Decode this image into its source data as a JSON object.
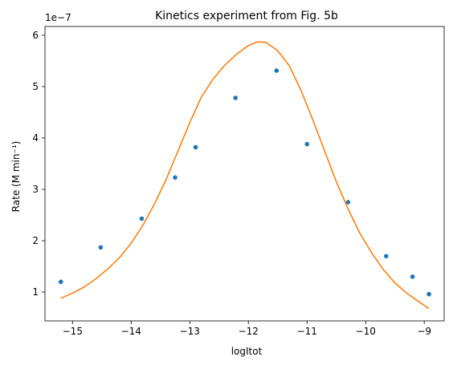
{
  "chart_data": {
    "type": "scatter",
    "title": "Kinetics experiment from Fig. 5b",
    "xlabel": "logItot",
    "ylabel": "Rate (M min⁻¹)",
    "y_offset_text": "1e−7",
    "y_multiplier": 1e-07,
    "xlim": [
      -15.47,
      -8.66
    ],
    "ylim": [
      0.44,
      6.17
    ],
    "x_ticks": [
      -15,
      -14,
      -13,
      -12,
      -11,
      -10,
      -9
    ],
    "x_tick_labels": [
      "−15",
      "−14",
      "−13",
      "−12",
      "−11",
      "−10",
      "−9"
    ],
    "y_ticks": [
      1,
      2,
      3,
      4,
      5,
      6
    ],
    "y_tick_labels": [
      "1",
      "2",
      "3",
      "4",
      "5",
      "6"
    ],
    "grid": false,
    "series": [
      {
        "kind": "scatter",
        "color": "#1f77b4",
        "points": [
          {
            "x": -15.2,
            "y": 1.2
          },
          {
            "x": -14.52,
            "y": 1.87
          },
          {
            "x": -13.82,
            "y": 2.43
          },
          {
            "x": -13.25,
            "y": 3.23
          },
          {
            "x": -12.9,
            "y": 3.82
          },
          {
            "x": -12.22,
            "y": 4.78
          },
          {
            "x": -11.52,
            "y": 5.31
          },
          {
            "x": -11.0,
            "y": 3.88
          },
          {
            "x": -10.3,
            "y": 2.75
          },
          {
            "x": -9.65,
            "y": 1.7
          },
          {
            "x": -9.2,
            "y": 1.3
          },
          {
            "x": -8.92,
            "y": 0.96
          }
        ]
      },
      {
        "kind": "line",
        "color": "#ff7f0e",
        "points": [
          {
            "x": -15.2,
            "y": 0.88
          },
          {
            "x": -15.0,
            "y": 0.98
          },
          {
            "x": -14.8,
            "y": 1.1
          },
          {
            "x": -14.6,
            "y": 1.26
          },
          {
            "x": -14.4,
            "y": 1.45
          },
          {
            "x": -14.2,
            "y": 1.67
          },
          {
            "x": -14.0,
            "y": 1.95
          },
          {
            "x": -13.8,
            "y": 2.3
          },
          {
            "x": -13.6,
            "y": 2.72
          },
          {
            "x": -13.4,
            "y": 3.2
          },
          {
            "x": -13.2,
            "y": 3.75
          },
          {
            "x": -13.0,
            "y": 4.3
          },
          {
            "x": -12.8,
            "y": 4.8
          },
          {
            "x": -12.6,
            "y": 5.15
          },
          {
            "x": -12.4,
            "y": 5.42
          },
          {
            "x": -12.2,
            "y": 5.63
          },
          {
            "x": -12.0,
            "y": 5.8
          },
          {
            "x": -11.85,
            "y": 5.87
          },
          {
            "x": -11.7,
            "y": 5.86
          },
          {
            "x": -11.5,
            "y": 5.7
          },
          {
            "x": -11.3,
            "y": 5.4
          },
          {
            "x": -11.1,
            "y": 4.92
          },
          {
            "x": -10.9,
            "y": 4.35
          },
          {
            "x": -10.7,
            "y": 3.75
          },
          {
            "x": -10.5,
            "y": 3.15
          },
          {
            "x": -10.3,
            "y": 2.62
          },
          {
            "x": -10.1,
            "y": 2.15
          },
          {
            "x": -9.9,
            "y": 1.77
          },
          {
            "x": -9.7,
            "y": 1.44
          },
          {
            "x": -9.5,
            "y": 1.18
          },
          {
            "x": -9.3,
            "y": 0.98
          },
          {
            "x": -9.1,
            "y": 0.82
          },
          {
            "x": -8.92,
            "y": 0.68
          }
        ]
      }
    ]
  }
}
